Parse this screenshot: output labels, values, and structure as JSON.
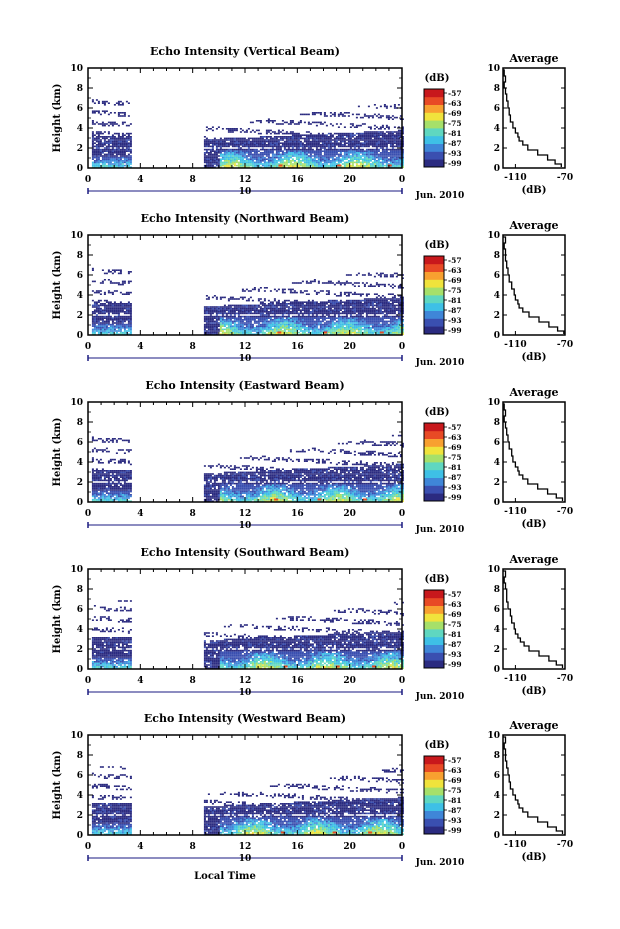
{
  "figure": {
    "x_axis_label": "Local Time",
    "date_label": "Jun. 2010",
    "day_label": "10"
  },
  "colorbar": {
    "unit_label": "(dB)",
    "tick_labels": [
      "-57",
      "-63",
      "-69",
      "-75",
      "-81",
      "-87",
      "-93",
      "-99"
    ],
    "colors": [
      "#2b2b80",
      "#3a4fb0",
      "#3f86d8",
      "#3ec0e6",
      "#5fd7c0",
      "#a6e06a",
      "#f0e33c",
      "#f8a030",
      "#e84a25",
      "#c8181c"
    ]
  },
  "chart_data": [
    {
      "type": "heatmap",
      "title": "Echo Intensity (Vertical Beam)",
      "ylabel": "Height (km)",
      "xlim": [
        0,
        24
      ],
      "ylim": [
        0,
        10
      ],
      "x_ticks": [
        "0",
        "4",
        "8",
        "12",
        "16",
        "20",
        "0"
      ],
      "y_ticks": [
        "0",
        "2",
        "4",
        "6",
        "8",
        "10"
      ],
      "data_gaps_hours": [
        [
          3.3,
          8.8
        ]
      ],
      "average_profile": {
        "type": "line",
        "title": "Average",
        "xlabel": "(dB)",
        "xlim": [
          -120,
          -70
        ],
        "ylim": [
          0,
          10
        ],
        "x_ticks": [
          "-110",
          "-70"
        ],
        "y_ticks": [
          "0",
          "2",
          "4",
          "6",
          "8",
          "10"
        ],
        "x": [
          -73,
          -78,
          -84,
          -92,
          -100,
          -104,
          -107,
          -108,
          -110,
          -112,
          -114,
          -115,
          -116,
          -117,
          -118,
          -119,
          -118,
          -119,
          -120
        ],
        "y": [
          0.1,
          0.4,
          0.8,
          1.3,
          1.8,
          2.3,
          2.7,
          3.1,
          3.5,
          4.0,
          4.6,
          5.3,
          6.0,
          6.7,
          7.4,
          8.0,
          8.6,
          9.2,
          9.8
        ]
      }
    },
    {
      "type": "heatmap",
      "title": "Echo Intensity (Northward Beam)",
      "ylabel": "Height (km)",
      "xlim": [
        0,
        24
      ],
      "ylim": [
        0,
        10
      ],
      "x_ticks": [
        "0",
        "4",
        "8",
        "12",
        "16",
        "20",
        "0"
      ],
      "y_ticks": [
        "0",
        "2",
        "4",
        "6",
        "8",
        "10"
      ],
      "data_gaps_hours": [
        [
          3.3,
          8.8
        ]
      ],
      "average_profile": {
        "type": "line",
        "title": "Average",
        "xlabel": "(dB)",
        "xlim": [
          -120,
          -70
        ],
        "ylim": [
          0,
          10
        ],
        "x_ticks": [
          "-110",
          "-70"
        ],
        "y_ticks": [
          "0",
          "2",
          "4",
          "6",
          "8",
          "10"
        ],
        "x": [
          -71,
          -76,
          -83,
          -91,
          -99,
          -104,
          -107,
          -108,
          -110,
          -111,
          -113,
          -115,
          -116,
          -117,
          -118,
          -118,
          -119,
          -118,
          -120
        ],
        "y": [
          0.1,
          0.4,
          0.8,
          1.3,
          1.8,
          2.3,
          2.7,
          3.1,
          3.5,
          4.0,
          4.6,
          5.3,
          6.0,
          6.7,
          7.4,
          8.0,
          8.6,
          9.2,
          9.8
        ]
      }
    },
    {
      "type": "heatmap",
      "title": "Echo Intensity (Eastward Beam)",
      "ylabel": "Height (km)",
      "xlim": [
        0,
        24
      ],
      "ylim": [
        0,
        10
      ],
      "x_ticks": [
        "0",
        "4",
        "8",
        "12",
        "16",
        "20",
        "0"
      ],
      "y_ticks": [
        "0",
        "2",
        "4",
        "6",
        "8",
        "10"
      ],
      "data_gaps_hours": [
        [
          3.3,
          8.8
        ]
      ],
      "average_profile": {
        "type": "line",
        "title": "Average",
        "xlabel": "(dB)",
        "xlim": [
          -120,
          -70
        ],
        "ylim": [
          0,
          10
        ],
        "x_ticks": [
          "-110",
          "-70"
        ],
        "y_ticks": [
          "0",
          "2",
          "4",
          "6",
          "8",
          "10"
        ],
        "x": [
          -72,
          -77,
          -84,
          -92,
          -100,
          -104,
          -107,
          -108,
          -110,
          -112,
          -113,
          -115,
          -116,
          -117,
          -118,
          -119,
          -118,
          -119,
          -120
        ],
        "y": [
          0.1,
          0.4,
          0.8,
          1.3,
          1.8,
          2.3,
          2.7,
          3.1,
          3.5,
          4.0,
          4.6,
          5.3,
          6.0,
          6.7,
          7.4,
          8.0,
          8.6,
          9.2,
          9.8
        ]
      }
    },
    {
      "type": "heatmap",
      "title": "Echo Intensity (Southward Beam)",
      "ylabel": "Height (km)",
      "xlim": [
        0,
        24
      ],
      "ylim": [
        0,
        10
      ],
      "x_ticks": [
        "0",
        "4",
        "8",
        "12",
        "16",
        "20",
        "0"
      ],
      "y_ticks": [
        "0",
        "2",
        "4",
        "6",
        "8",
        "10"
      ],
      "data_gaps_hours": [
        [
          3.3,
          8.8
        ]
      ],
      "average_profile": {
        "type": "line",
        "title": "Average",
        "xlabel": "(dB)",
        "xlim": [
          -120,
          -70
        ],
        "ylim": [
          0,
          10
        ],
        "x_ticks": [
          "-110",
          "-70"
        ],
        "y_ticks": [
          "0",
          "2",
          "4",
          "6",
          "8",
          "10"
        ],
        "x": [
          -72,
          -77,
          -83,
          -91,
          -99,
          -103,
          -106,
          -108,
          -110,
          -111,
          -113,
          -114,
          -116,
          -117,
          -117,
          -118,
          -119,
          -118,
          -120
        ],
        "y": [
          0.1,
          0.4,
          0.8,
          1.3,
          1.8,
          2.3,
          2.7,
          3.1,
          3.5,
          4.0,
          4.6,
          5.3,
          6.0,
          6.7,
          7.4,
          8.0,
          8.6,
          9.2,
          9.8
        ]
      }
    },
    {
      "type": "heatmap",
      "title": "Echo Intensity (Westward Beam)",
      "ylabel": "Height (km)",
      "xlim": [
        0,
        24
      ],
      "ylim": [
        0,
        10
      ],
      "x_ticks": [
        "0",
        "4",
        "8",
        "12",
        "16",
        "20",
        "0"
      ],
      "y_ticks": [
        "0",
        "2",
        "4",
        "6",
        "8",
        "10"
      ],
      "data_gaps_hours": [
        [
          3.3,
          8.8
        ]
      ],
      "average_profile": {
        "type": "line",
        "title": "Average",
        "xlabel": "(dB)",
        "xlim": [
          -120,
          -70
        ],
        "ylim": [
          0,
          10
        ],
        "x_ticks": [
          "-110",
          "-70"
        ],
        "y_ticks": [
          "0",
          "2",
          "4",
          "6",
          "8",
          "10"
        ],
        "x": [
          -72,
          -77,
          -84,
          -92,
          -100,
          -104,
          -107,
          -108,
          -110,
          -112,
          -114,
          -115,
          -116,
          -117,
          -118,
          -118,
          -119,
          -118,
          -120
        ],
        "y": [
          0.1,
          0.4,
          0.8,
          1.3,
          1.8,
          2.3,
          2.7,
          3.1,
          3.5,
          4.0,
          4.6,
          5.3,
          6.0,
          6.7,
          7.4,
          8.0,
          8.6,
          9.2,
          9.8
        ]
      }
    }
  ]
}
